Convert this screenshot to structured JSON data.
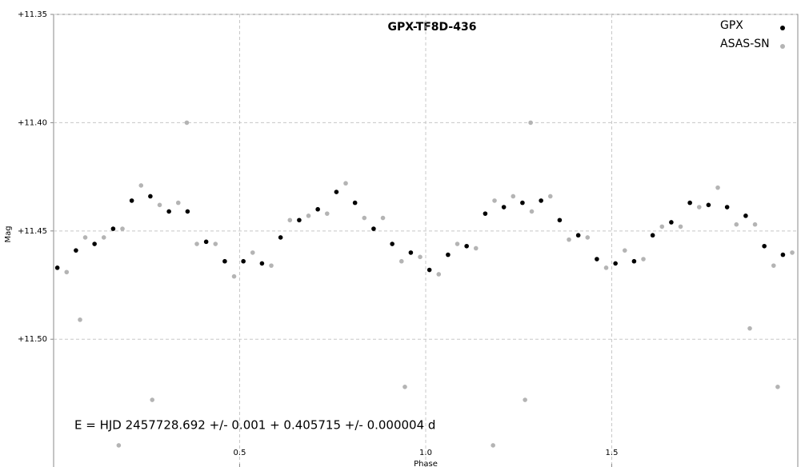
{
  "chart_data": {
    "type": "scatter",
    "title": "GPX-TF8D-436",
    "xlabel": "Phase",
    "ylabel": "Mag",
    "annotation": "E = HJD 2457728.692 +/- 0.001   + 0.405715 +/- 0.000004 d",
    "xlim": [
      0,
      2
    ],
    "ylim": [
      11.35,
      11.559
    ],
    "y_inverted": true,
    "xticks": [
      0.5,
      {
        "value": 1,
        "label": "1.0"
      },
      1.5
    ],
    "yticks": [
      {
        "value": 11.35,
        "label": "+11.35"
      },
      {
        "value": 11.4,
        "label": "+11.40"
      },
      {
        "value": 11.45,
        "label": "+11.45"
      },
      {
        "value": 11.5,
        "label": "+11.50"
      }
    ],
    "grid": true,
    "legend": "upper right",
    "series": [
      {
        "name": "GPX",
        "color": "#000000",
        "x": [
          0.01,
          0.06,
          0.11,
          0.16,
          0.21,
          0.26,
          0.31,
          0.36,
          0.41,
          0.46,
          0.51,
          0.56,
          0.61,
          0.66,
          0.71,
          0.76,
          0.81,
          0.86,
          0.91,
          0.96,
          1.01,
          1.06,
          1.11,
          1.16,
          1.21,
          1.26,
          1.31,
          1.36,
          1.41,
          1.46,
          1.51,
          1.56,
          1.61,
          1.66,
          1.71,
          1.76,
          1.81,
          1.86,
          1.91,
          1.96
        ],
        "values": [
          11.467,
          11.459,
          11.456,
          11.449,
          11.436,
          11.434,
          11.441,
          11.441,
          11.455,
          11.464,
          11.464,
          11.465,
          11.453,
          11.445,
          11.44,
          11.432,
          11.437,
          11.449,
          11.456,
          11.46,
          11.468,
          11.461,
          11.457,
          11.442,
          11.439,
          11.437,
          11.436,
          11.445,
          11.452,
          11.463,
          11.465,
          11.464,
          11.452,
          11.446,
          11.437,
          11.438,
          11.439,
          11.443,
          11.457,
          11.461
        ]
      },
      {
        "name": "ASAS-SN",
        "color": "#b4b4b4",
        "x": [
          0.035,
          0.085,
          0.135,
          0.185,
          0.235,
          0.285,
          0.335,
          0.385,
          0.435,
          0.485,
          0.535,
          0.585,
          0.635,
          0.685,
          0.735,
          0.785,
          0.835,
          0.885,
          0.935,
          0.985,
          1.035,
          1.085,
          1.135,
          1.185,
          1.235,
          1.285,
          1.335,
          1.385,
          1.435,
          1.485,
          1.535,
          1.585,
          1.635,
          1.685,
          1.735,
          1.785,
          1.835,
          1.885,
          1.935,
          1.985,
          0.265,
          1.267,
          1.946,
          0.358,
          1.282,
          0.071,
          0.175,
          1.181,
          0.944,
          1.871
        ],
        "values": [
          11.469,
          11.453,
          11.453,
          11.449,
          11.429,
          11.438,
          11.437,
          11.456,
          11.456,
          11.471,
          11.46,
          11.466,
          11.445,
          11.443,
          11.442,
          11.428,
          11.444,
          11.444,
          11.464,
          11.462,
          11.47,
          11.456,
          11.458,
          11.436,
          11.434,
          11.441,
          11.434,
          11.454,
          11.453,
          11.467,
          11.459,
          11.463,
          11.448,
          11.448,
          11.439,
          11.43,
          11.447,
          11.447,
          11.466,
          11.46,
          11.528,
          11.528,
          11.522,
          11.4,
          11.4,
          11.491,
          11.549,
          11.549,
          11.522,
          11.495
        ]
      }
    ]
  }
}
